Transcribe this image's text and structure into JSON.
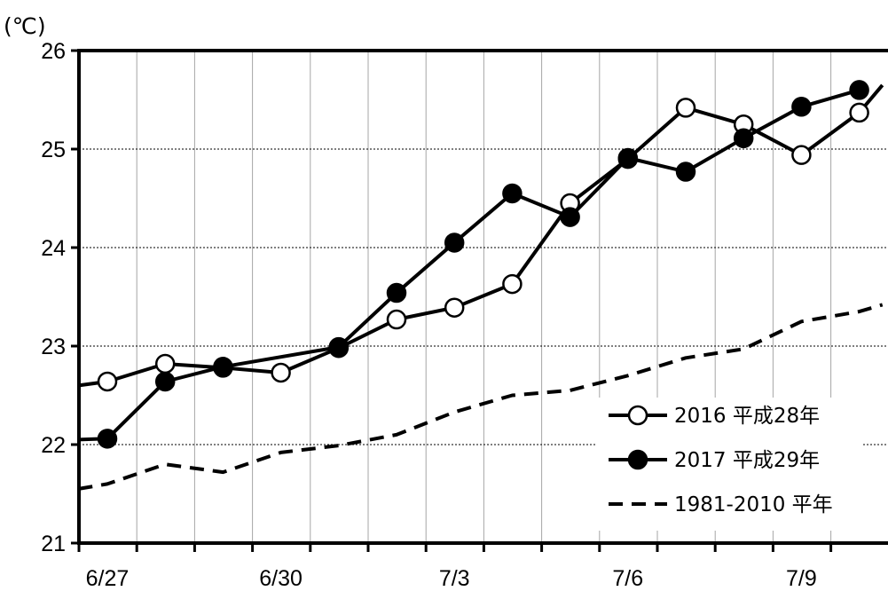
{
  "chart_data": {
    "type": "line",
    "unit_label": "(℃)",
    "y_ticks": [
      "21",
      "22",
      "23",
      "24",
      "25",
      "26"
    ],
    "x_ticks": [
      "6/27",
      "6/30",
      "7/3",
      "7/6",
      "7/9"
    ],
    "ylim": [
      21,
      26
    ],
    "grid": true,
    "legend_position": "bottom-right",
    "series": [
      {
        "name": "2016 平成28年",
        "marker": "open-circle",
        "color": "#000000",
        "points": [
          [
            -0.5,
            22.6
          ],
          [
            0,
            22.64
          ],
          [
            1,
            22.82
          ],
          [
            2,
            22.78
          ],
          [
            3,
            22.73
          ],
          [
            4,
            22.98
          ],
          [
            5,
            23.27
          ],
          [
            6,
            23.39
          ],
          [
            7,
            23.63
          ],
          [
            8,
            24.45
          ],
          [
            9,
            24.9
          ],
          [
            10,
            25.42
          ],
          [
            11,
            25.25
          ],
          [
            12,
            24.94
          ],
          [
            13,
            25.37
          ],
          [
            13.4,
            25.65
          ]
        ]
      },
      {
        "name": "2017 平成29年",
        "marker": "filled-circle",
        "color": "#000000",
        "points": [
          [
            -0.5,
            22.05
          ],
          [
            0,
            22.06
          ],
          [
            1,
            22.64
          ],
          [
            2,
            22.79
          ],
          [
            4,
            22.99
          ],
          [
            5,
            23.54
          ],
          [
            6,
            24.05
          ],
          [
            7,
            24.55
          ],
          [
            8,
            24.31
          ],
          [
            9,
            24.91
          ],
          [
            10,
            24.77
          ],
          [
            11,
            25.11
          ],
          [
            12,
            25.43
          ],
          [
            13,
            25.6
          ]
        ]
      },
      {
        "name": "1981-2010 平年",
        "marker": "none",
        "style": "dashed",
        "color": "#000000",
        "points": [
          [
            -0.5,
            21.55
          ],
          [
            0,
            21.6
          ],
          [
            1,
            21.8
          ],
          [
            2,
            21.72
          ],
          [
            3,
            21.92
          ],
          [
            4,
            21.99
          ],
          [
            5,
            22.1
          ],
          [
            6,
            22.33
          ],
          [
            7,
            22.5
          ],
          [
            8,
            22.55
          ],
          [
            9,
            22.7
          ],
          [
            10,
            22.88
          ],
          [
            11,
            22.97
          ],
          [
            12,
            23.25
          ],
          [
            13,
            23.35
          ],
          [
            13.4,
            23.42
          ]
        ]
      }
    ]
  }
}
